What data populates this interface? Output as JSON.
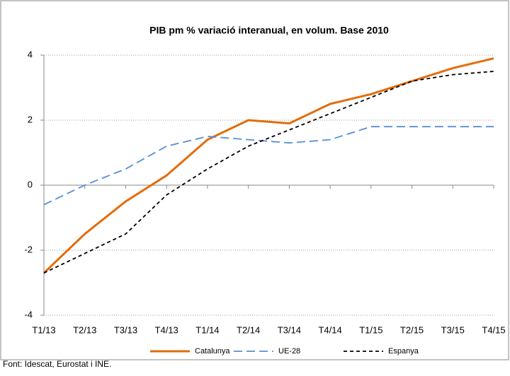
{
  "chart_data": {
    "type": "line",
    "title": "PIB pm % variació interanual, en volum. Base 2010",
    "source": "Font: Idescat, Eurostat i INE.",
    "categories": [
      "T1/13",
      "T2/13",
      "T3/13",
      "T4/13",
      "T1/14",
      "T2/14",
      "T3/14",
      "T4/14",
      "T1/15",
      "T2/15",
      "T3/15",
      "T4/15"
    ],
    "series": [
      {
        "name": "Catalunya",
        "color": "#e36c0a",
        "dash": "solid",
        "values": [
          -2.7,
          -1.5,
          -0.5,
          0.3,
          1.4,
          2.0,
          1.9,
          2.5,
          2.8,
          3.2,
          3.6,
          3.9
        ]
      },
      {
        "name": "UE-28",
        "color": "#558ed5",
        "dash": "dashed",
        "values": [
          -0.6,
          0.0,
          0.5,
          1.2,
          1.5,
          1.4,
          1.3,
          1.4,
          1.8,
          1.8,
          1.8,
          1.8
        ]
      },
      {
        "name": "Espanya",
        "color": "#000000",
        "dash": "dotted",
        "values": [
          -2.7,
          -2.1,
          -1.5,
          -0.3,
          0.5,
          1.2,
          1.7,
          2.2,
          2.7,
          3.2,
          3.4,
          3.5
        ]
      }
    ],
    "ylim": [
      -4,
      4
    ],
    "yticks": [
      -4,
      -2,
      0,
      2,
      4
    ],
    "grid": true,
    "legend": "bottom"
  }
}
